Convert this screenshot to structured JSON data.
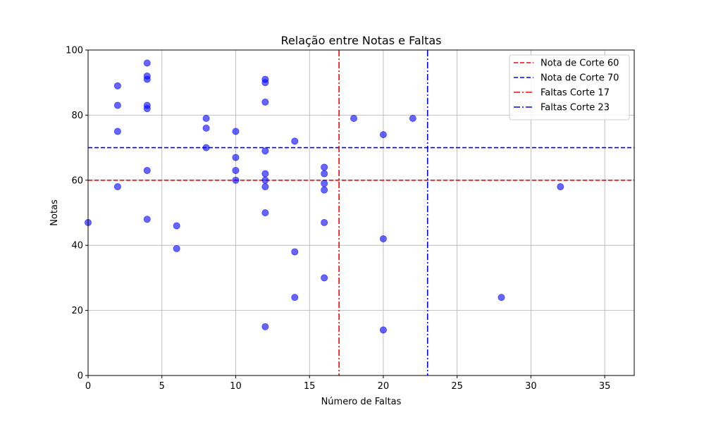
{
  "chart_data": {
    "type": "scatter",
    "title": "Relação entre Notas e Faltas",
    "xlabel": "Número de Faltas",
    "ylabel": "Notas",
    "xlim": [
      0,
      37
    ],
    "ylim": [
      0,
      100
    ],
    "xticks": [
      0,
      5,
      10,
      15,
      20,
      25,
      30,
      35
    ],
    "yticks": [
      0,
      20,
      40,
      60,
      80,
      100
    ],
    "grid": true,
    "legend_position": "top-right",
    "point_color": "#0000ff",
    "series": [
      {
        "x": [
          0,
          2,
          2,
          2,
          2,
          4,
          4,
          4,
          4,
          4,
          4,
          4,
          6,
          6,
          8,
          8,
          8,
          10,
          10,
          10,
          10,
          12,
          12,
          12,
          12,
          12,
          12,
          12,
          12,
          12,
          14,
          14,
          14,
          16,
          16,
          16,
          16,
          16,
          16,
          18,
          20,
          20,
          20,
          22,
          28,
          32
        ],
        "y": [
          47,
          89,
          83,
          75,
          58,
          96,
          92,
          91,
          83,
          82,
          63,
          48,
          46,
          39,
          79,
          76,
          70,
          75,
          67,
          63,
          60,
          91,
          90,
          84,
          69,
          62,
          60,
          58,
          15,
          50,
          38,
          24,
          72,
          64,
          62,
          59,
          57,
          30,
          47,
          79,
          74,
          42,
          14,
          79,
          24,
          58
        ]
      }
    ],
    "reference_lines": [
      {
        "label": "Nota de Corte 60",
        "orientation": "horizontal",
        "value": 60,
        "color": "#ff0000",
        "style": "dashed"
      },
      {
        "label": "Nota de Corte 70",
        "orientation": "horizontal",
        "value": 70,
        "color": "#0000ff",
        "style": "dashed"
      },
      {
        "label": "Faltas Corte 17",
        "orientation": "vertical",
        "value": 17,
        "color": "#ff0000",
        "style": "dashdot"
      },
      {
        "label": "Faltas Corte 23",
        "orientation": "vertical",
        "value": 23,
        "color": "#0000ff",
        "style": "dashdot"
      }
    ]
  }
}
